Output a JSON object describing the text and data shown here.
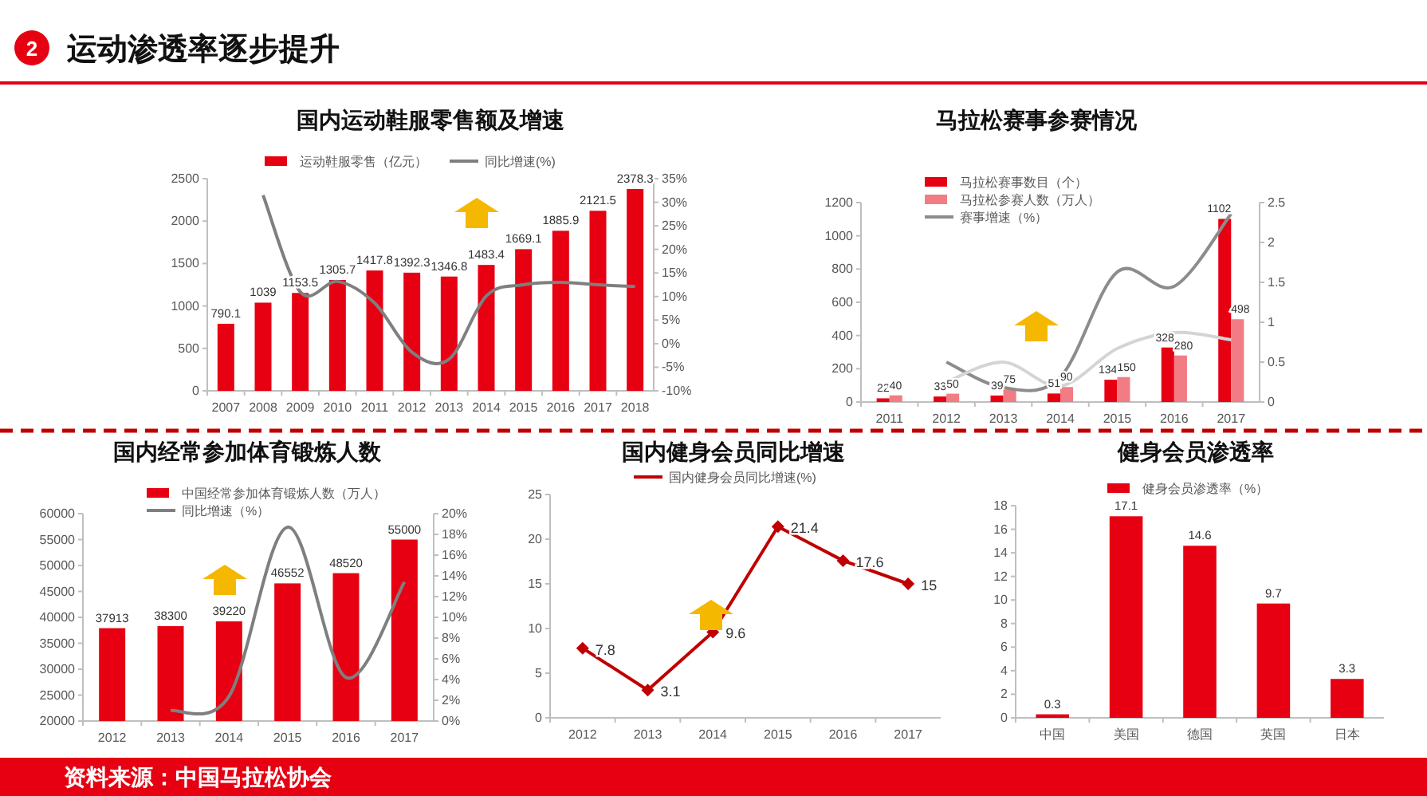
{
  "chart_data": [
    {
      "type": "other",
      "title": "运动渗透率逐步提升",
      "annotations": [
        "2",
        "资料来源：中国马拉松协会"
      ]
    },
    {
      "type": "bar",
      "title": "国内运动鞋服零售额及增速",
      "categories": [
        "2007",
        "2008",
        "2009",
        "2010",
        "2011",
        "2012",
        "2013",
        "2014",
        "2015",
        "2016",
        "2017",
        "2018"
      ],
      "series": [
        {
          "name": "运动鞋服零售（亿元）",
          "type": "bar",
          "color": "#e60012",
          "values": [
            790.1,
            1039,
            1153.5,
            1305.7,
            1417.8,
            1392.3,
            1346.8,
            1483.4,
            1669.1,
            1885.9,
            2121.5,
            2378.3
          ],
          "value_labels": [
            "790.1",
            "1039",
            "1153.5",
            "1305.7",
            "1417.8",
            "1392.3",
            "1346.8",
            "1483.4",
            "1669.1",
            "1885.9",
            "2121.5",
            "2378.3"
          ]
        },
        {
          "name": "同比增速(%)",
          "type": "line",
          "axis": "y2",
          "color": "#7f7f7f",
          "values": [
            null,
            31.5,
            11.0,
            13.2,
            8.6,
            -1.8,
            -3.3,
            10.1,
            12.5,
            13.0,
            12.5,
            12.1
          ]
        }
      ],
      "ylim": [
        0,
        2500
      ],
      "yticks": [
        0,
        500,
        1000,
        1500,
        2000,
        2500
      ],
      "y2lim": [
        -10,
        35
      ],
      "y2ticks": [
        {
          "value": -10,
          "label": "-10%"
        },
        {
          "value": -5,
          "label": "-5%"
        },
        {
          "value": 0,
          "label": "0%"
        },
        {
          "value": 5,
          "label": "5%"
        },
        {
          "value": 10,
          "label": "10%"
        },
        {
          "value": 15,
          "label": "15%"
        },
        {
          "value": 20,
          "label": "20%"
        },
        {
          "value": 25,
          "label": "25%"
        },
        {
          "value": 30,
          "label": "30%"
        },
        {
          "value": 35,
          "label": "35%"
        }
      ],
      "legend": "top",
      "grid": false
    },
    {
      "type": "bar",
      "title": "马拉松赛事参赛情况",
      "categories": [
        "2011",
        "2012",
        "2013",
        "2014",
        "2015",
        "2016",
        "2017"
      ],
      "series": [
        {
          "name": "马拉松赛事数目（个）",
          "type": "bar",
          "color": "#e60012",
          "values": [
            22,
            33,
            39,
            51,
            134,
            328,
            1102
          ],
          "value_labels": [
            "22",
            "33",
            "39",
            "51",
            "134",
            "328",
            "1102"
          ]
        },
        {
          "name": "马拉松参赛人数（万人）",
          "type": "bar",
          "color": "#f27c84",
          "values": [
            40,
            50,
            75,
            90,
            150,
            280,
            498
          ],
          "value_labels": [
            "40",
            "50",
            "75",
            "90",
            "150",
            "280",
            "498"
          ]
        },
        {
          "name": "赛事增速（%）",
          "type": "line",
          "axis": "y2",
          "color": "#8c8c8c",
          "values": [
            null,
            0.5,
            0.18,
            0.31,
            1.63,
            1.45,
            2.36
          ]
        },
        {
          "type": "line",
          "axis": "y2",
          "color": "#d4d4d4",
          "values": [
            null,
            0.25,
            0.5,
            0.2,
            0.67,
            0.87,
            0.78
          ]
        }
      ],
      "ylim": [
        0,
        1200
      ],
      "yticks": [
        0,
        200,
        400,
        600,
        800,
        1000,
        1200
      ],
      "y2lim": [
        0,
        2.5
      ],
      "y2ticks": [
        0,
        0.5,
        1,
        1.5,
        2,
        2.5
      ],
      "legend": "top left",
      "grid": false
    },
    {
      "type": "bar",
      "title": "国内经常参加体育锻炼人数",
      "categories": [
        "2012",
        "2013",
        "2014",
        "2015",
        "2016",
        "2017"
      ],
      "series": [
        {
          "name": "中国经常参加体育锻炼人数（万人）",
          "type": "bar",
          "color": "#e60012",
          "values": [
            37913,
            38300,
            39220,
            46552,
            48520,
            55000
          ],
          "value_labels": [
            "37913",
            "38300",
            "39220",
            "46552",
            "48520",
            "55000"
          ]
        },
        {
          "name": "同比增速（%）",
          "type": "line",
          "axis": "y2",
          "color": "#7f7f7f",
          "values": [
            null,
            1.0,
            2.4,
            18.7,
            4.2,
            13.4
          ]
        }
      ],
      "ylim": [
        20000,
        60000
      ],
      "yticks": [
        20000,
        25000,
        30000,
        35000,
        40000,
        45000,
        50000,
        55000,
        60000
      ],
      "y2lim": [
        0,
        20
      ],
      "y2ticks": [
        {
          "value": 0,
          "label": "0%"
        },
        {
          "value": 2,
          "label": "2%"
        },
        {
          "value": 4,
          "label": "4%"
        },
        {
          "value": 6,
          "label": "6%"
        },
        {
          "value": 8,
          "label": "8%"
        },
        {
          "value": 10,
          "label": "10%"
        },
        {
          "value": 12,
          "label": "12%"
        },
        {
          "value": 14,
          "label": "14%"
        },
        {
          "value": 16,
          "label": "16%"
        },
        {
          "value": 18,
          "label": "18%"
        },
        {
          "value": 20,
          "label": "20%"
        }
      ],
      "legend": "top left",
      "grid": false
    },
    {
      "type": "line",
      "title": "国内健身会员同比增速",
      "categories": [
        "2012",
        "2013",
        "2014",
        "2015",
        "2016",
        "2017"
      ],
      "series": [
        {
          "name": "国内健身会员同比增速(%)",
          "color": "#c00000",
          "values": [
            7.8,
            3.1,
            9.6,
            21.4,
            17.6,
            15
          ]
        }
      ],
      "ylim": [
        0,
        25
      ],
      "yticks": [
        0,
        5,
        10,
        15,
        20,
        25
      ],
      "marker": "diamond",
      "data_labels": true,
      "legend": "top",
      "grid": false
    },
    {
      "type": "bar",
      "title": "健身会员渗透率",
      "categories": [
        "中国",
        "美国",
        "德国",
        "英国",
        "日本"
      ],
      "series": [
        {
          "name": "健身会员渗透率（%）",
          "color": "#e60012",
          "values": [
            0.3,
            17.1,
            14.6,
            9.7,
            3.3
          ]
        }
      ],
      "ylim": [
        0,
        18
      ],
      "yticks": [
        0,
        2,
        4,
        6,
        8,
        10,
        12,
        14,
        16,
        18
      ],
      "data_labels": true,
      "legend": "top",
      "grid": false
    }
  ]
}
